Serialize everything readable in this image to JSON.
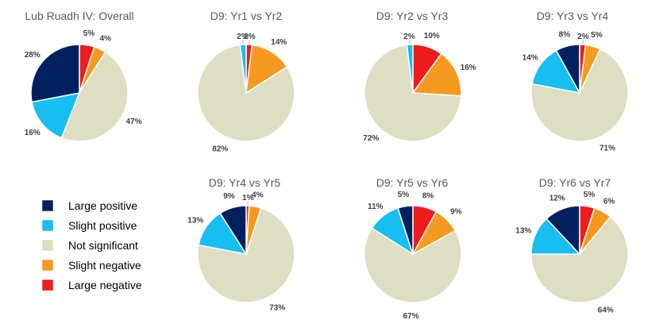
{
  "legend": [
    {
      "label": "Large positive",
      "color": "#002060"
    },
    {
      "label": "Slight positive",
      "color": "#17BEF2"
    },
    {
      "label": "Not significant",
      "color": "#DDDEC2"
    },
    {
      "label": "Slight negative",
      "color": "#F59A1F"
    },
    {
      "label": "Large negative",
      "color": "#EE1C1C"
    }
  ],
  "chart_data": [
    {
      "type": "pie",
      "title": "Lub Ruadh IV: Overall",
      "labels": [
        "Large negative",
        "Slight negative",
        "Not significant",
        "Slight positive",
        "Large positive"
      ],
      "values": [
        5,
        4,
        47,
        16,
        28
      ]
    },
    {
      "type": "pie",
      "title": "D9: Yr1 vs Yr2",
      "labels": [
        "Large negative",
        "Slight negative",
        "Not significant",
        "Slight positive",
        "Large positive"
      ],
      "values": [
        2,
        14,
        82,
        2,
        0
      ]
    },
    {
      "type": "pie",
      "title": "D9: Yr2 vs Yr3",
      "labels": [
        "Large negative",
        "Slight negative",
        "Not significant",
        "Slight positive",
        "Large positive"
      ],
      "values": [
        10,
        16,
        72,
        2,
        0
      ]
    },
    {
      "type": "pie",
      "title": "D9: Yr3 vs Yr4",
      "labels": [
        "Large negative",
        "Slight negative",
        "Not significant",
        "Slight positive",
        "Large positive"
      ],
      "values": [
        2,
        5,
        71,
        14,
        8
      ]
    },
    {
      "type": "pie",
      "title": "D9: Yr4 vs Yr5",
      "labels": [
        "Large negative",
        "Slight negative",
        "Not significant",
        "Slight positive",
        "Large positive"
      ],
      "values": [
        1,
        4,
        73,
        13,
        9
      ]
    },
    {
      "type": "pie",
      "title": "D9: Yr5 vs Yr6",
      "labels": [
        "Large negative",
        "Slight negative",
        "Not significant",
        "Slight positive",
        "Large positive"
      ],
      "values": [
        8,
        9,
        67,
        11,
        5
      ]
    },
    {
      "type": "pie",
      "title": "D9: Yr6 vs Yr7",
      "labels": [
        "Large negative",
        "Slight negative",
        "Not significant",
        "Slight positive",
        "Large positive"
      ],
      "values": [
        5,
        6,
        64,
        13,
        12
      ]
    }
  ]
}
